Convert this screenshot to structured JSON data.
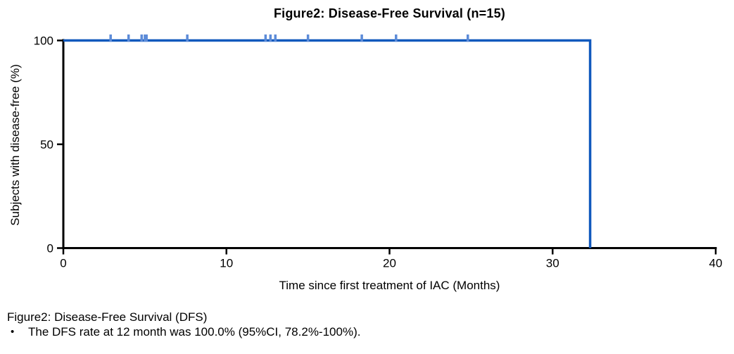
{
  "chart_data": {
    "type": "line",
    "subtype": "kaplan-meier-step",
    "title": "Figure2: Disease-Free Survival (n=15)",
    "xlabel": "Time since first treatment of IAC (Months)",
    "ylabel": "Subjects with disease-free (%)",
    "xlim": [
      0,
      40
    ],
    "ylim": [
      0,
      100
    ],
    "xticks": [
      0,
      10,
      20,
      30,
      40
    ],
    "yticks": [
      0,
      50,
      100
    ],
    "grid": false,
    "legend": null,
    "series": [
      {
        "name": "Disease-Free Survival",
        "type": "step",
        "points": [
          {
            "x": 0,
            "y": 100
          },
          {
            "x": 32.3,
            "y": 100
          },
          {
            "x": 32.3,
            "y": 0
          }
        ]
      }
    ],
    "censor_marks": {
      "y": 100,
      "x": [
        2.9,
        4.0,
        4.8,
        5.0,
        5.1,
        7.6,
        12.4,
        12.7,
        13.0,
        15.0,
        18.3,
        20.4,
        24.8
      ]
    },
    "colors": {
      "curve": "#1159bd",
      "censor": "#5c8bd8",
      "axis": "#000000"
    }
  },
  "caption": {
    "title": "Figure2: Disease-Free Survival (DFS)",
    "bullet": "•",
    "bullets": [
      "The DFS rate at 12 month was 100.0% (95%CI, 78.2%-100%)."
    ]
  }
}
